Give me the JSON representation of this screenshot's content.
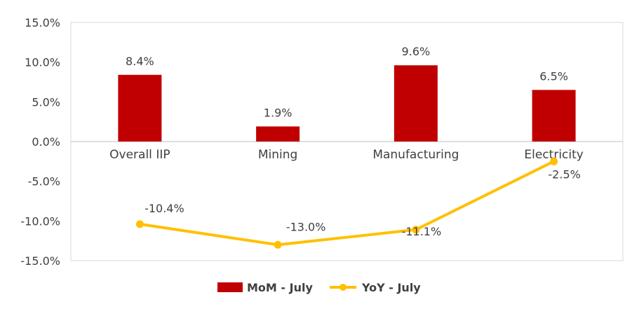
{
  "chart_data": {
    "type": "bar+line",
    "categories": [
      "Overall IIP",
      "Mining",
      "Manufacturing",
      "Electricity"
    ],
    "series": [
      {
        "name": "MoM - July",
        "type": "bar",
        "color": "#C00000",
        "values": [
          8.4,
          1.9,
          9.6,
          6.5
        ],
        "labels": [
          "8.4%",
          "1.9%",
          "9.6%",
          "6.5%"
        ]
      },
      {
        "name": "YoY - July",
        "type": "line",
        "color": "#FFC000",
        "values": [
          -10.4,
          -13.0,
          -11.1,
          -2.5
        ],
        "labels": [
          "-10.4%",
          "-13.0%",
          "-11.1%",
          "-2.5%"
        ]
      }
    ],
    "ylim": [
      -15,
      15
    ],
    "yticks": [
      15,
      10,
      5,
      0,
      -5,
      -10,
      -15
    ],
    "ytick_labels": [
      "15.0%",
      "10.0%",
      "5.0%",
      "0.0%",
      "-5.0%",
      "-10.0%",
      "-15.0%"
    ],
    "grid": false,
    "legend_position": "bottom"
  }
}
